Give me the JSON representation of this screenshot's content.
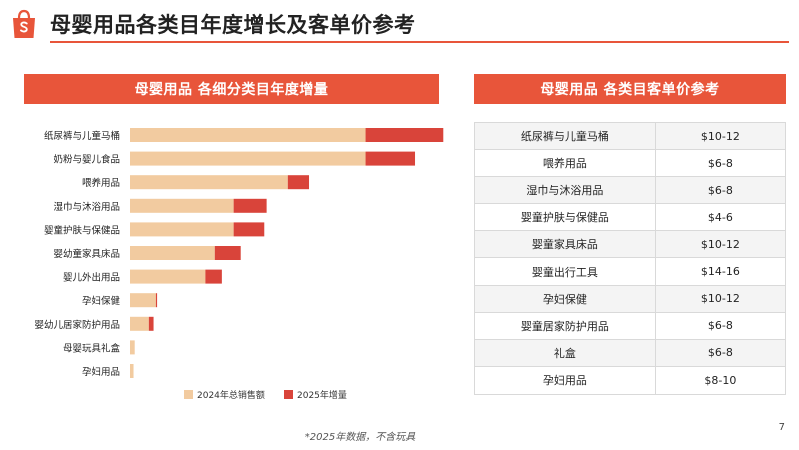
{
  "header": {
    "title": "母婴用品各类目年度增长及客单价参考"
  },
  "colors": {
    "accent": "#e8553a",
    "base_bar": "#f2cba0",
    "increase_bar": "#d9443a"
  },
  "left_panel": {
    "title": "母婴用品 各细分类目年度增量"
  },
  "right_panel": {
    "title": "母婴用品 各类目客单价参考"
  },
  "chart_data": {
    "type": "bar",
    "orientation": "horizontal",
    "stacked": true,
    "categories": [
      "纸尿裤与儿童马桶",
      "奶粉与婴儿食品",
      "喂养用品",
      "湿巾与沐浴用品",
      "婴童护肤与保健品",
      "婴幼童家具床品",
      "婴儿外出用品",
      "孕妇保健",
      "婴幼儿居家防护用品",
      "母婴玩具礼盒",
      "孕妇用品"
    ],
    "series": [
      {
        "name": "2024年总销售额",
        "values": [
          100,
          100,
          67,
          44,
          44,
          36,
          32,
          11,
          8,
          2,
          1.5
        ]
      },
      {
        "name": "2025年增量",
        "values": [
          33,
          21,
          9,
          14,
          13,
          11,
          7,
          0.5,
          2,
          0,
          0
        ]
      }
    ],
    "xlim": [
      0,
      135
    ],
    "grid": false,
    "axis_labels_visible": false,
    "legend_position": "bottom"
  },
  "price_table": {
    "rows": [
      {
        "category": "纸尿裤与儿童马桶",
        "price": "$10-12"
      },
      {
        "category": "喂养用品",
        "price": "$6-8"
      },
      {
        "category": "湿巾与沐浴用品",
        "price": "$6-8"
      },
      {
        "category": "婴童护肤与保健品",
        "price": "$4-6"
      },
      {
        "category": "婴童家具床品",
        "price": "$10-12"
      },
      {
        "category": "婴童出行工具",
        "price": "$14-16"
      },
      {
        "category": "孕妇保健",
        "price": "$10-12"
      },
      {
        "category": "婴童居家防护用品",
        "price": "$6-8"
      },
      {
        "category": "礼盒",
        "price": "$6-8"
      },
      {
        "category": "孕妇用品",
        "price": "$8-10"
      }
    ]
  },
  "footnote": "*2025年数据，不含玩具",
  "page_number": "7"
}
